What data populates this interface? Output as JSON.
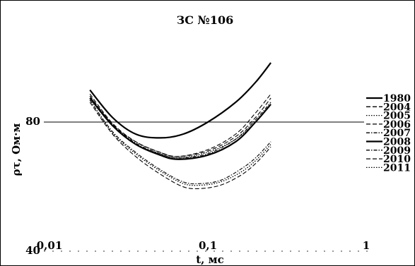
{
  "chart_data": {
    "type": "line",
    "title": "ЗС №106",
    "xlabel": "t, мс",
    "ylabel": "ρτ, Ом·м",
    "x_scale": "log",
    "y_scale": "log",
    "xlim": [
      0.01,
      1
    ],
    "ylim": [
      40,
      120
    ],
    "x_ticks": [
      {
        "value": 0.01,
        "label": "0,01"
      },
      {
        "value": 0.1,
        "label": "0,1"
      },
      {
        "value": 1,
        "label": "1"
      }
    ],
    "y_ticks": [
      {
        "value": 40,
        "label": "40"
      },
      {
        "value": 80,
        "label": "80"
      }
    ],
    "grid": false,
    "legend_position": "right",
    "series": [
      {
        "name": "1980",
        "style": "solid-thick",
        "x": [
          0.018,
          0.025,
          0.035,
          0.05,
          0.07,
          0.1,
          0.15,
          0.2,
          0.25
        ],
        "y": [
          95,
          82,
          75,
          73.5,
          75,
          80,
          89,
          99,
          110
        ]
      },
      {
        "name": "2004",
        "style": "dashed",
        "x": [
          0.018,
          0.025,
          0.035,
          0.05,
          0.065,
          0.1,
          0.15,
          0.2,
          0.25
        ],
        "y": [
          92,
          79,
          72,
          68,
          66.5,
          68.5,
          74,
          82,
          91
        ]
      },
      {
        "name": "2005",
        "style": "dotted",
        "x": [
          0.018,
          0.025,
          0.035,
          0.05,
          0.065,
          0.1,
          0.15,
          0.2,
          0.25
        ],
        "y": [
          91,
          78.5,
          71,
          67.5,
          66,
          68,
          73,
          80,
          88
        ]
      },
      {
        "name": "2006",
        "style": "dashed",
        "x": [
          0.018,
          0.025,
          0.035,
          0.05,
          0.065,
          0.1,
          0.15,
          0.2,
          0.25
        ],
        "y": [
          93,
          79.5,
          72,
          68,
          66.5,
          69,
          75,
          84,
          93
        ]
      },
      {
        "name": "2007",
        "style": "dash-dot",
        "x": [
          0.018,
          0.025,
          0.035,
          0.05,
          0.065,
          0.1,
          0.15,
          0.2,
          0.25
        ],
        "y": [
          92,
          79,
          71.5,
          67.5,
          66,
          67.5,
          73,
          81,
          89
        ]
      },
      {
        "name": "2008",
        "style": "solid-thick",
        "x": [
          0.018,
          0.025,
          0.035,
          0.05,
          0.065,
          0.1,
          0.15,
          0.2,
          0.25
        ],
        "y": [
          91,
          78.5,
          71,
          67,
          65.5,
          67,
          72,
          80,
          88
        ]
      },
      {
        "name": "2009",
        "style": "dash-dot",
        "x": [
          0.018,
          0.025,
          0.035,
          0.05,
          0.07,
          0.09,
          0.12,
          0.16,
          0.2,
          0.25
        ],
        "y": [
          90,
          76,
          68,
          62,
          58,
          57.5,
          58.5,
          62,
          66,
          72
        ]
      },
      {
        "name": "2010",
        "style": "dashed",
        "x": [
          0.018,
          0.025,
          0.035,
          0.05,
          0.07,
          0.09,
          0.12,
          0.16,
          0.2,
          0.25
        ],
        "y": [
          89,
          75,
          66.5,
          60.5,
          56.5,
          56,
          57,
          60,
          64,
          70
        ]
      },
      {
        "name": "2011",
        "style": "dotted",
        "x": [
          0.018,
          0.025,
          0.035,
          0.05,
          0.07,
          0.09,
          0.12,
          0.16,
          0.2,
          0.25
        ],
        "y": [
          90,
          75.5,
          67.5,
          61.5,
          57.5,
          57,
          58,
          61,
          65,
          71
        ]
      }
    ]
  }
}
